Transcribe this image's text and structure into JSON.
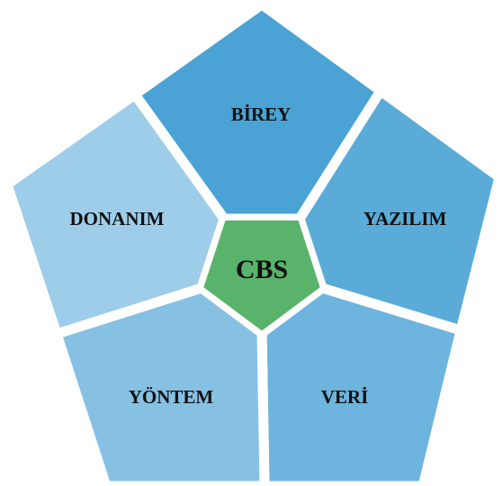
{
  "center": {
    "label": "CBS"
  },
  "segments": [
    {
      "label": "BİREY"
    },
    {
      "label": "YAZILIM"
    },
    {
      "label": "VERİ"
    },
    {
      "label": "YÖNTEM"
    },
    {
      "label": "DONANIM"
    }
  ]
}
